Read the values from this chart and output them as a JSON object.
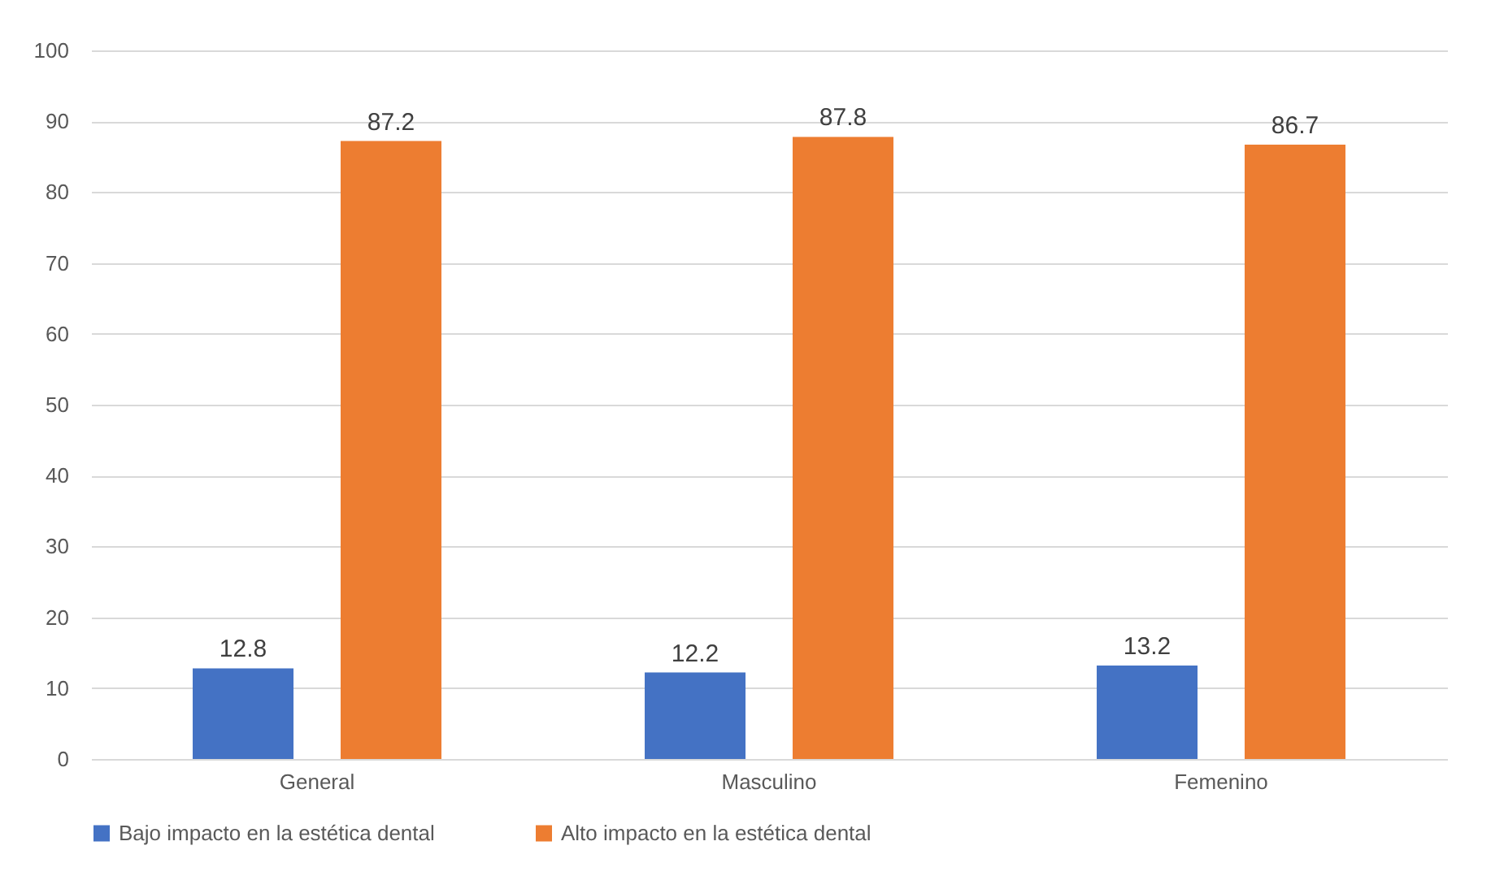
{
  "chart_data": {
    "type": "bar",
    "categories": [
      "General",
      "Masculino",
      "Femenino"
    ],
    "series": [
      {
        "name": "Bajo impacto en la estética dental",
        "color": "#4472c4",
        "values": [
          12.8,
          12.2,
          13.2
        ]
      },
      {
        "name": "Alto impacto en la estética dental",
        "color": "#ed7d31",
        "values": [
          87.2,
          87.8,
          86.7
        ]
      }
    ],
    "ylim": [
      0,
      100
    ],
    "yticks": [
      0,
      10,
      20,
      30,
      40,
      50,
      60,
      70,
      80,
      90,
      100
    ],
    "grid": "y",
    "legend": "bottom",
    "data_labels": true
  }
}
